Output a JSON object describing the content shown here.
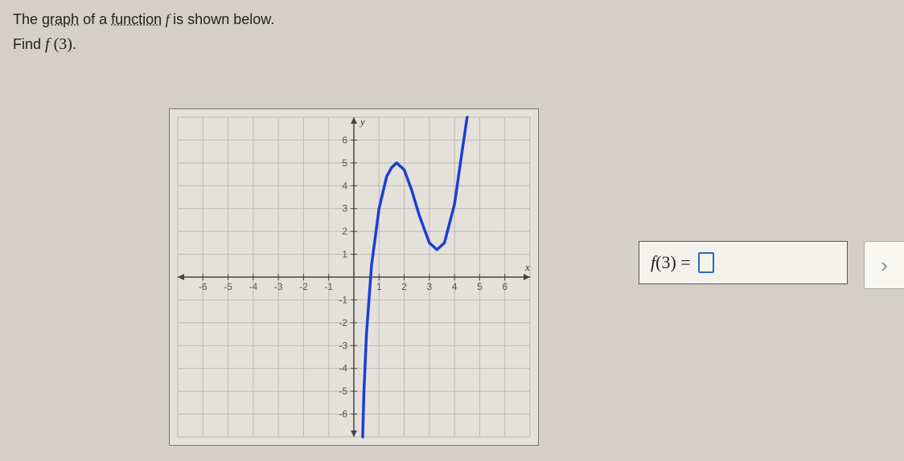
{
  "question": {
    "line1_prefix": "The ",
    "line1_link1": "graph",
    "line1_mid": " of a ",
    "line1_link2": "function",
    "line1_fn": " f ",
    "line1_suffix": "is shown below.",
    "line2_prefix": "Find ",
    "line2_math": "f (3)",
    "line2_suffix": "."
  },
  "answer": {
    "label_lhs": "f(3) = ",
    "value": ""
  },
  "chart": {
    "type": "line",
    "background_color": "#e4e1da",
    "grid_color": "#bdb9b1",
    "axis_color": "#444444",
    "tick_label_color": "#555555",
    "curve_color": "#1a3fd6",
    "curve_width": 3.5,
    "xlim": [
      -7,
      7
    ],
    "ylim": [
      -7,
      7
    ],
    "xticks": [
      -6,
      -5,
      -4,
      -3,
      -2,
      -1,
      1,
      2,
      3,
      4,
      5,
      6
    ],
    "yticks": [
      -6,
      -5,
      -4,
      -3,
      -2,
      -1,
      1,
      2,
      3,
      4,
      5,
      6
    ],
    "x_axis_label": "x",
    "y_axis_label": "y",
    "tick_fontsize": 12,
    "curve_points": [
      [
        0.35,
        -7
      ],
      [
        0.4,
        -5
      ],
      [
        0.5,
        -2.5
      ],
      [
        0.7,
        0.5
      ],
      [
        1.0,
        3.0
      ],
      [
        1.3,
        4.4
      ],
      [
        1.5,
        4.8
      ],
      [
        1.7,
        5.0
      ],
      [
        2.0,
        4.7
      ],
      [
        2.3,
        3.8
      ],
      [
        2.6,
        2.7
      ],
      [
        3.0,
        1.5
      ],
      [
        3.3,
        1.2
      ],
      [
        3.6,
        1.5
      ],
      [
        4.0,
        3.2
      ],
      [
        4.3,
        5.5
      ],
      [
        4.5,
        7.0
      ]
    ]
  },
  "next_button_glyph": "›"
}
